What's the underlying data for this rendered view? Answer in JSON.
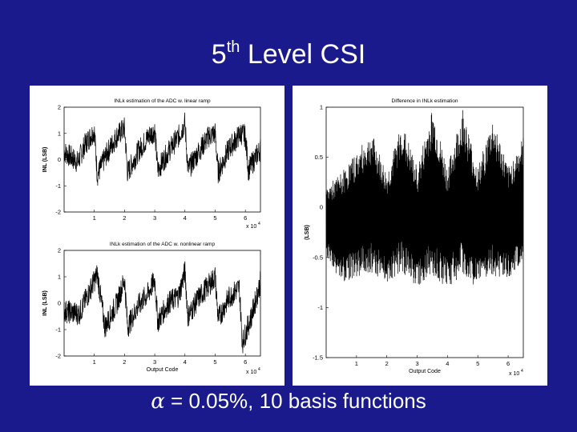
{
  "slide": {
    "title_main": "5",
    "title_sup": "th",
    "title_rest": " Level CSI",
    "caption_symbol": "α",
    "caption_text": " = 0.05%, 10 basis functions"
  },
  "colors": {
    "background": "#1a1a8c",
    "panel": "#ffffff",
    "trace": "#000000"
  },
  "chart_data": [
    {
      "type": "line",
      "title": "INLk estimation of the ADC w. linear ramp",
      "xlabel": "",
      "ylabel": "INL (LSB)",
      "xlim": [
        0,
        6.5
      ],
      "ylim": [
        -2,
        2
      ],
      "xticks": [
        1,
        2,
        3,
        4,
        5,
        6
      ],
      "yticks": [
        -2,
        -1,
        0,
        1,
        2
      ],
      "x_multiplier": "x 10",
      "x_multiplier_exp": "4",
      "series": [
        {
          "x": [
            0,
            0.45,
            0.7,
            1.0,
            1.1,
            1.4,
            1.75,
            2.0,
            2.1,
            2.45,
            2.8,
            3.0,
            3.1,
            3.45,
            3.8,
            4.0,
            4.1,
            4.45,
            4.8,
            5.0,
            5.1,
            5.45,
            5.85,
            6.0,
            6.1,
            6.5
          ],
          "values": [
            0.3,
            -0.1,
            0.6,
            1.1,
            -0.6,
            0.2,
            0.9,
            1.2,
            -0.5,
            0.3,
            0.9,
            1.1,
            -0.4,
            0.3,
            0.9,
            1.4,
            -0.4,
            0.3,
            0.9,
            1.0,
            -0.5,
            0.4,
            1.0,
            0.9,
            -0.4,
            0.4
          ],
          "noise_amplitude": 0.45
        }
      ]
    },
    {
      "type": "line",
      "title": "INLk estimation of the ADC w. nonlinear ramp",
      "xlabel": "Output Code",
      "ylabel": "INL (LSB)",
      "xlim": [
        0,
        6.5
      ],
      "ylim": [
        -2,
        2
      ],
      "xticks": [
        1,
        2,
        3,
        4,
        5,
        6
      ],
      "yticks": [
        -2,
        -1,
        0,
        1,
        2
      ],
      "x_multiplier": "x 10",
      "x_multiplier_exp": "4",
      "series": [
        {
          "x": [
            0,
            0.5,
            0.9,
            1.1,
            1.35,
            1.75,
            2.0,
            2.1,
            2.45,
            2.8,
            3.0,
            3.1,
            3.45,
            3.8,
            4.0,
            4.1,
            4.45,
            4.8,
            5.0,
            5.1,
            5.45,
            5.8,
            5.9,
            6.2,
            6.5
          ],
          "values": [
            -0.3,
            -0.4,
            0.6,
            1.1,
            -0.9,
            0.0,
            0.9,
            -0.9,
            -0.1,
            0.4,
            0.9,
            -0.7,
            0.0,
            0.3,
            1.2,
            -0.5,
            0.2,
            0.7,
            1.0,
            -0.6,
            0.2,
            0.6,
            -1.5,
            -0.5,
            0.8
          ],
          "noise_amplitude": 0.45
        }
      ]
    },
    {
      "type": "line",
      "title": "Difference in INLk estimation",
      "xlabel": "Output Code",
      "ylabel": "(LSB)",
      "xlim": [
        0,
        6.5
      ],
      "ylim": [
        -1.5,
        1
      ],
      "xticks": [
        1,
        2,
        3,
        4,
        5,
        6
      ],
      "yticks": [
        -1.5,
        -1,
        -0.5,
        0,
        0.5,
        1
      ],
      "x_multiplier": "x 10",
      "x_multiplier_exp": "4",
      "series": [
        {
          "x": [
            0,
            0.5,
            1.5,
            2.0,
            2.5,
            3.0,
            3.5,
            4.0,
            4.5,
            5.0,
            5.5,
            6.0,
            6.5
          ],
          "center": [
            -0.15,
            -0.2,
            0.05,
            -0.2,
            0.1,
            -0.2,
            0.15,
            -0.2,
            0.15,
            -0.2,
            0.1,
            -0.15,
            0.05
          ],
          "envelope": [
            0.35,
            0.55,
            0.7,
            0.55,
            0.75,
            0.6,
            0.85,
            0.6,
            0.85,
            0.6,
            0.8,
            0.55,
            0.65
          ]
        }
      ]
    }
  ]
}
